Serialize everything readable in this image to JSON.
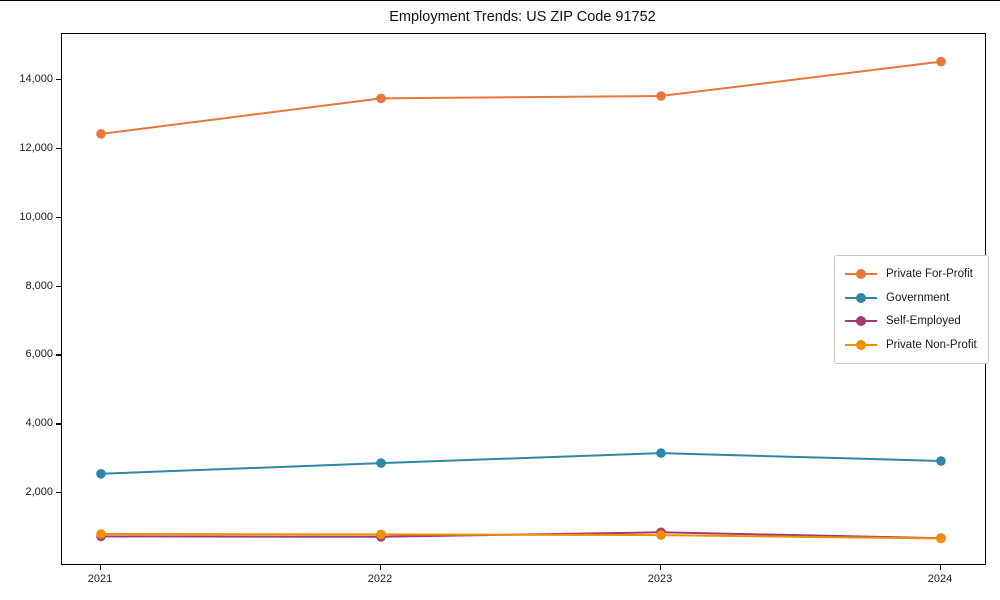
{
  "chart_data": {
    "type": "line",
    "title": "Employment Trends: US ZIP Code 91752",
    "x": [
      "2021",
      "2022",
      "2023",
      "2024"
    ],
    "series": [
      {
        "name": "Private For-Profit",
        "color": "#E8763B",
        "values": [
          12450,
          13480,
          13550,
          14550
        ]
      },
      {
        "name": "Government",
        "color": "#2E86AB",
        "values": [
          2580,
          2890,
          3180,
          2950
        ]
      },
      {
        "name": "Self-Employed",
        "color": "#A23B72",
        "values": [
          760,
          750,
          880,
          710
        ]
      },
      {
        "name": "Private Non-Profit",
        "color": "#F18F01",
        "values": [
          830,
          820,
          800,
          700
        ]
      }
    ],
    "xlabel": "",
    "ylabel": "",
    "x_tick_labels": [
      "2021",
      "2022",
      "2023",
      "2024"
    ],
    "y_ticks": [
      2000,
      4000,
      6000,
      8000,
      10000,
      12000,
      14000
    ],
    "y_tick_labels": [
      "2,000",
      "4,000",
      "6,000",
      "8,000",
      "10,000",
      "12,000",
      "14,000"
    ],
    "ylim": [
      -40,
      15350
    ],
    "grid": false,
    "marker": "circle",
    "legend_position": "center right",
    "legend_entries": [
      "Private For-Profit",
      "Government",
      "Self-Employed",
      "Private Non-Profit"
    ]
  }
}
